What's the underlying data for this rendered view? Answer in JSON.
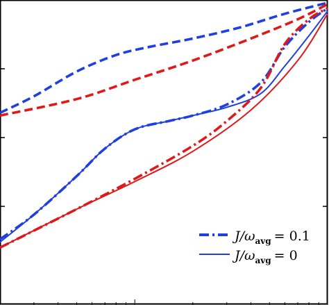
{
  "chart_data": {
    "type": "line",
    "xscale": "log",
    "xlim": [
      0.02,
      1
    ],
    "ylim": [
      0,
      1
    ],
    "grid": false,
    "legend_position": "bottom-right",
    "title": "",
    "xlabel": "",
    "ylabel": "",
    "legend": [
      {
        "label": "J/ω",
        "subscript": "avg",
        "value": "= 0.1",
        "style": "dashdot",
        "color": "#1f3fe0"
      },
      {
        "label": "J/ω",
        "subscript": "avg",
        "value": "= 0",
        "style": "solid",
        "color": "#1f3fe0"
      }
    ],
    "series": [
      {
        "color": "#1f3fe0",
        "style": "dashed",
        "x": [
          0.02,
          0.03,
          0.05,
          0.08,
          0.12,
          0.2,
          0.35,
          0.6,
          1.0
        ],
        "y": [
          0.59,
          0.65,
          0.74,
          0.8,
          0.83,
          0.86,
          0.9,
          0.95,
          0.99
        ]
      },
      {
        "color": "#e01818",
        "style": "dashed",
        "x": [
          0.02,
          0.05,
          0.1,
          0.2,
          0.4,
          0.7,
          1.0
        ],
        "y": [
          0.58,
          0.64,
          0.71,
          0.78,
          0.86,
          0.93,
          0.985
        ]
      },
      {
        "color": "#1f3fe0",
        "style": "dashdot",
        "x": [
          0.02,
          0.03,
          0.05,
          0.07,
          0.1,
          0.15,
          0.2,
          0.3,
          0.45,
          0.6,
          0.8,
          1.0
        ],
        "y": [
          0.13,
          0.22,
          0.36,
          0.46,
          0.53,
          0.56,
          0.58,
          0.62,
          0.7,
          0.83,
          0.92,
          0.97
        ]
      },
      {
        "color": "#1f3fe0",
        "style": "solid",
        "x": [
          0.02,
          0.03,
          0.05,
          0.07,
          0.1,
          0.15,
          0.2,
          0.3,
          0.45,
          0.6,
          0.8,
          1.0
        ],
        "y": [
          0.12,
          0.22,
          0.36,
          0.46,
          0.53,
          0.56,
          0.58,
          0.61,
          0.66,
          0.76,
          0.87,
          0.96
        ]
      },
      {
        "color": "#e01818",
        "style": "dashdot",
        "x": [
          0.02,
          0.05,
          0.1,
          0.2,
          0.3,
          0.45,
          0.6,
          0.8,
          1.0
        ],
        "y": [
          0.1,
          0.24,
          0.35,
          0.47,
          0.56,
          0.68,
          0.84,
          0.93,
          0.97
        ]
      },
      {
        "color": "#e01818",
        "style": "solid",
        "x": [
          0.02,
          0.05,
          0.1,
          0.2,
          0.4,
          0.7,
          1.0
        ],
        "y": [
          0.1,
          0.24,
          0.34,
          0.45,
          0.6,
          0.78,
          0.95
        ]
      }
    ]
  }
}
